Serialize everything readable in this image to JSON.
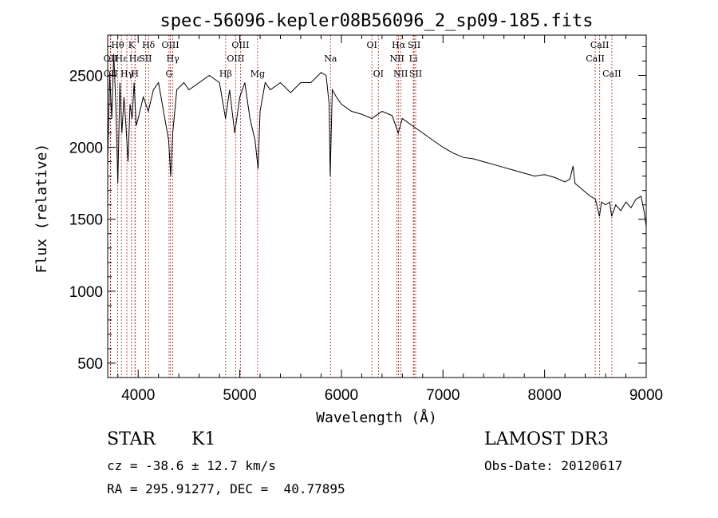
{
  "chart_data": {
    "type": "line",
    "title": "spec-56096-kepler08B56096_2_sp09-185.fits",
    "xlabel": "Wavelength (Å)",
    "ylabel": "Flux (relative)",
    "xlim": [
      3700,
      9000
    ],
    "ylim": [
      400,
      2780
    ],
    "xticks": [
      4000,
      5000,
      6000,
      7000,
      8000,
      9000
    ],
    "yticks": [
      500,
      1000,
      1500,
      2000,
      2500
    ],
    "grid": false,
    "series": [
      {
        "name": "flux",
        "x": [
          3700,
          3720,
          3740,
          3760,
          3780,
          3800,
          3820,
          3840,
          3860,
          3880,
          3900,
          3920,
          3940,
          3960,
          3980,
          4000,
          4050,
          4100,
          4150,
          4200,
          4250,
          4300,
          4320,
          4340,
          4380,
          4450,
          4500,
          4600,
          4700,
          4800,
          4860,
          4900,
          4950,
          5000,
          5050,
          5100,
          5150,
          5180,
          5200,
          5250,
          5300,
          5400,
          5500,
          5600,
          5700,
          5800,
          5850,
          5880,
          5890,
          5910,
          5950,
          6000,
          6100,
          6200,
          6300,
          6400,
          6500,
          6560,
          6600,
          6700,
          6800,
          6900,
          7000,
          7100,
          7200,
          7300,
          7400,
          7500,
          7600,
          7700,
          7800,
          7900,
          8000,
          8100,
          8200,
          8250,
          8280,
          8300,
          8350,
          8400,
          8450,
          8500,
          8520,
          8540,
          8560,
          8600,
          8640,
          8660,
          8700,
          8750,
          8800,
          8850,
          8900,
          8950,
          8980,
          9000
        ],
        "y": [
          1900,
          2500,
          2200,
          2650,
          2300,
          1750,
          2450,
          2100,
          2350,
          2150,
          1900,
          2300,
          2200,
          2450,
          2150,
          2200,
          2350,
          2250,
          2400,
          2450,
          2250,
          2050,
          1800,
          2100,
          2400,
          2450,
          2400,
          2450,
          2500,
          2450,
          2200,
          2400,
          2100,
          2350,
          2450,
          2200,
          2050,
          1850,
          2250,
          2450,
          2400,
          2450,
          2380,
          2450,
          2450,
          2520,
          2500,
          2300,
          1800,
          2400,
          2350,
          2300,
          2250,
          2230,
          2200,
          2250,
          2220,
          2100,
          2200,
          2150,
          2100,
          2050,
          2000,
          1960,
          1930,
          1920,
          1900,
          1880,
          1860,
          1840,
          1820,
          1800,
          1810,
          1790,
          1760,
          1780,
          1870,
          1750,
          1720,
          1690,
          1660,
          1640,
          1580,
          1520,
          1620,
          1600,
          1620,
          1520,
          1600,
          1560,
          1620,
          1580,
          1640,
          1660,
          1550,
          1450
        ]
      }
    ],
    "line_markers": [
      {
        "label": "OII",
        "x": 3727,
        "row": 2
      },
      {
        "label": "OII",
        "x": 3729,
        "row": 3
      },
      {
        "label": "Hθ",
        "x": 3798,
        "row": 1
      },
      {
        "label": "Hε",
        "x": 3835,
        "row": 2
      },
      {
        "label": "Hγ",
        "x": 3889,
        "row": 3
      },
      {
        "label": "K",
        "x": 3934,
        "row": 1
      },
      {
        "label": "Hε",
        "x": 3970,
        "row": 2
      },
      {
        "label": "H",
        "x": 3968,
        "row": 3
      },
      {
        "label": "SII",
        "x": 4072,
        "row": 2
      },
      {
        "label": "Hδ",
        "x": 4102,
        "row": 1
      },
      {
        "label": "OIII",
        "x": 4317,
        "row": 1
      },
      {
        "label": "Hγ",
        "x": 4341,
        "row": 2
      },
      {
        "label": "G",
        "x": 4304,
        "row": 3
      },
      {
        "label": "Hβ",
        "x": 4861,
        "row": 3
      },
      {
        "label": "OIII",
        "x": 4959,
        "row": 2
      },
      {
        "label": "OIII",
        "x": 5007,
        "row": 1
      },
      {
        "label": "Mg",
        "x": 5175,
        "row": 3
      },
      {
        "label": "Na",
        "x": 5893,
        "row": 2
      },
      {
        "label": "OI",
        "x": 6300,
        "row": 1
      },
      {
        "label": "OI",
        "x": 6364,
        "row": 3
      },
      {
        "label": "Hα",
        "x": 6563,
        "row": 1
      },
      {
        "label": "NII",
        "x": 6548,
        "row": 2
      },
      {
        "label": "NII",
        "x": 6583,
        "row": 3
      },
      {
        "label": "Li",
        "x": 6708,
        "row": 2
      },
      {
        "label": "SII",
        "x": 6716,
        "row": 1
      },
      {
        "label": "SII",
        "x": 6731,
        "row": 3
      },
      {
        "label": "CaII",
        "x": 8498,
        "row": 2
      },
      {
        "label": "CaII",
        "x": 8542,
        "row": 1
      },
      {
        "label": "CaII",
        "x": 8662,
        "row": 3
      }
    ],
    "marker_color": "#b22222"
  },
  "info": {
    "object_type": "STAR",
    "subclass": "K1",
    "survey": "LAMOST DR3",
    "redshift_text": "cz = -38.6 ± 12.7 km/s",
    "obs_date_text": "Obs-Date: 20120617",
    "coords_text": "RA = 295.91277, DEC =  40.77895"
  }
}
